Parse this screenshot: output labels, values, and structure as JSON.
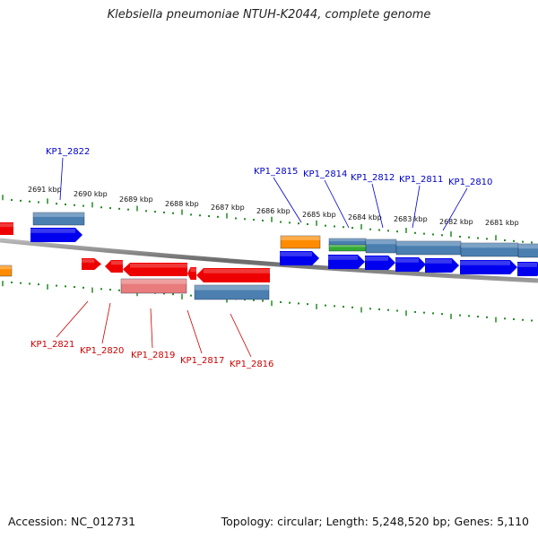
{
  "title": "Klebsiella pneumoniae NTUH-K2044, complete genome",
  "footer": {
    "accession": "Accession: NC_012731",
    "topology": "Topology: circular; Length: 5,248,520 bp; Genes: 5,110"
  },
  "scale_labels": [
    "2691 kbp",
    "2690 kbp",
    "2689 kbp",
    "2688 kbp",
    "2687 kbp",
    "2686 kbp",
    "2685 kbp",
    "2684 kbp",
    "2683 kbp",
    "2682 kbp",
    "2681 kbp"
  ],
  "gene_labels": {
    "forward": [
      "KP1_2822",
      "KP1_2815",
      "KP1_2814",
      "KP1_2812",
      "KP1_2811",
      "KP1_2810"
    ],
    "reverse": [
      "KP1_2821",
      "KP1_2820",
      "KP1_2819",
      "KP1_2817",
      "KP1_2816"
    ]
  },
  "colors": {
    "forward_label": "#0000cc",
    "reverse_label": "#cc0000",
    "cds_forward": "#0000ee",
    "cds_reverse": "#ee0000",
    "gene_forward": "#4a7fb0",
    "gene_reverse": "#e87b7b",
    "trna": "#ff8c00",
    "misc": "#33aa33",
    "tick": "#228B22"
  }
}
